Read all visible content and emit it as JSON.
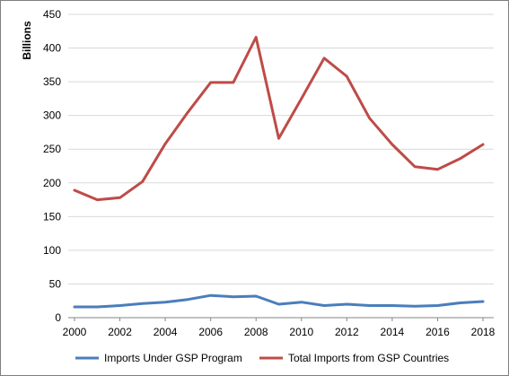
{
  "chart_data": {
    "type": "line",
    "title": "",
    "xlabel": "",
    "ylabel": "Billions",
    "x": [
      2000,
      2001,
      2002,
      2003,
      2004,
      2005,
      2006,
      2007,
      2008,
      2009,
      2010,
      2011,
      2012,
      2013,
      2014,
      2015,
      2016,
      2017,
      2018
    ],
    "x_ticks": [
      "2000",
      "2002",
      "2004",
      "2006",
      "2008",
      "2010",
      "2012",
      "2014",
      "2016",
      "2018"
    ],
    "ylim": [
      0,
      450
    ],
    "y_ticks": [
      "0",
      "50",
      "100",
      "150",
      "200",
      "250",
      "300",
      "350",
      "400",
      "450"
    ],
    "grid": true,
    "legend_position": "bottom",
    "series": [
      {
        "name": "Imports Under GSP Program",
        "color": "#4a7ebb",
        "values": [
          16,
          16,
          18,
          21,
          23,
          27,
          33,
          31,
          32,
          20,
          23,
          18,
          20,
          18,
          18,
          17,
          18,
          22,
          24
        ]
      },
      {
        "name": "Total Imports from GSP Countries",
        "color": "#be4b48",
        "values": [
          189,
          175,
          178,
          202,
          258,
          305,
          349,
          349,
          416,
          266,
          325,
          385,
          358,
          296,
          257,
          224,
          220,
          236,
          257
        ]
      }
    ]
  }
}
